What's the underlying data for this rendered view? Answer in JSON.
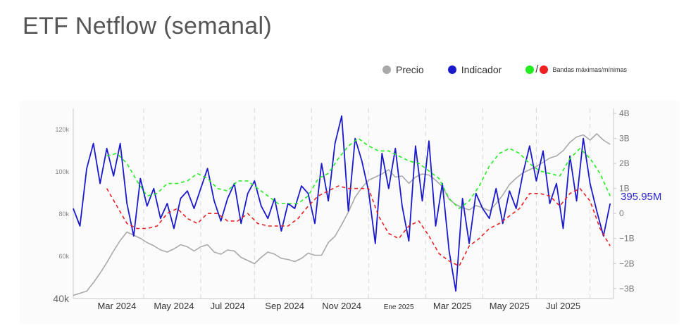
{
  "title": "ETF Netflow (semanal)",
  "legend": {
    "price": {
      "label": "Precio",
      "color": "#a9a9a9"
    },
    "indicator": {
      "label": "Indicador",
      "color": "#1a1acc"
    },
    "bands": {
      "label": "Bandas máximas/mínimas",
      "upper_color": "#22ee22",
      "lower_color": "#ee2222"
    }
  },
  "chart_data": {
    "type": "line",
    "x_range": [
      2024.03,
      2025.64
    ],
    "x_ticks": [
      {
        "label": "Mar 2024",
        "x": 2024.16
      },
      {
        "label": "May 2024",
        "x": 2024.33
      },
      {
        "label": "Jul 2024",
        "x": 2024.49
      },
      {
        "label": "Sep 2024",
        "x": 2024.66
      },
      {
        "label": "Nov 2024",
        "x": 2024.83
      },
      {
        "label": "Ene 2025",
        "x": 2025.0
      },
      {
        "label": "Mar 2025",
        "x": 2025.16
      },
      {
        "label": "May 2025",
        "x": 2025.33
      },
      {
        "label": "Jul 2025",
        "x": 2025.49
      }
    ],
    "gridlines_x": [
      2024.24,
      2024.41,
      2024.57,
      2024.74,
      2024.91,
      2025.08,
      2025.25,
      2025.41,
      2025.57
    ],
    "y_left": {
      "range": [
        40000,
        130000
      ],
      "ticks": [
        {
          "label": "120k",
          "value": 120000
        },
        {
          "label": "100k",
          "value": 100000
        },
        {
          "label": "80k",
          "value": 80000
        },
        {
          "label": "60k",
          "value": 60000
        },
        {
          "label": "40k",
          "value": 40000
        }
      ]
    },
    "y_right": {
      "range": [
        -3.4,
        4.2
      ],
      "unit": "B",
      "ticks": [
        {
          "label": "4B",
          "value": 4
        },
        {
          "label": "3B",
          "value": 3
        },
        {
          "label": "2B",
          "value": 2
        },
        {
          "label": "1B",
          "value": 1
        },
        {
          "label": "0",
          "value": 0
        },
        {
          "label": "−1B",
          "value": -1
        },
        {
          "label": "−2B",
          "value": -2
        },
        {
          "label": "−3B",
          "value": -3
        }
      ]
    },
    "last_value_label": "395.95M",
    "series": [
      {
        "name": "Precio",
        "axis": "left",
        "style": "solid",
        "color": "#a9a9a9",
        "x": [
          2024.03,
          2024.05,
          2024.07,
          2024.09,
          2024.11,
          2024.13,
          2024.15,
          2024.17,
          2024.19,
          2024.21,
          2024.23,
          2024.25,
          2024.27,
          2024.29,
          2024.31,
          2024.33,
          2024.35,
          2024.37,
          2024.39,
          2024.41,
          2024.43,
          2024.45,
          2024.47,
          2024.49,
          2024.51,
          2024.53,
          2024.55,
          2024.57,
          2024.59,
          2024.61,
          2024.63,
          2024.65,
          2024.67,
          2024.69,
          2024.71,
          2024.73,
          2024.75,
          2024.77,
          2024.79,
          2024.81,
          2024.83,
          2024.85,
          2024.87,
          2024.89,
          2024.91,
          2024.93,
          2024.95,
          2024.97,
          2024.99,
          2025.01,
          2025.03,
          2025.05,
          2025.07,
          2025.09,
          2025.11,
          2025.13,
          2025.15,
          2025.17,
          2025.19,
          2025.21,
          2025.23,
          2025.25,
          2025.27,
          2025.29,
          2025.31,
          2025.33,
          2025.35,
          2025.37,
          2025.39,
          2025.41,
          2025.43,
          2025.45,
          2025.47,
          2025.49,
          2025.51,
          2025.53,
          2025.55,
          2025.57,
          2025.59,
          2025.61,
          2025.63
        ],
        "values": [
          41500,
          42500,
          43500,
          47500,
          52000,
          57000,
          62500,
          67500,
          71500,
          70000,
          68500,
          66500,
          65000,
          63000,
          62000,
          63500,
          65500,
          64500,
          62500,
          64500,
          65500,
          62000,
          61000,
          63000,
          62500,
          59500,
          58000,
          56500,
          59500,
          62000,
          61000,
          59000,
          58500,
          57500,
          59000,
          61500,
          60500,
          60500,
          66500,
          69500,
          75000,
          81000,
          88000,
          92500,
          96000,
          97500,
          99000,
          101000,
          97500,
          98000,
          94500,
          97500,
          99000,
          98500,
          96000,
          93000,
          87000,
          84500,
          83000,
          82000,
          84000,
          83000,
          81500,
          85000,
          89000,
          94000,
          97000,
          99500,
          101000,
          102500,
          104500,
          106500,
          107500,
          110000,
          114000,
          116500,
          117500,
          115000,
          118000,
          115000,
          113000
        ]
      },
      {
        "name": "Indicador",
        "axis": "right",
        "style": "solid",
        "color": "#1a1acc",
        "x": [
          2024.03,
          2024.05,
          2024.07,
          2024.09,
          2024.11,
          2024.13,
          2024.15,
          2024.17,
          2024.19,
          2024.21,
          2024.23,
          2024.25,
          2024.27,
          2024.29,
          2024.31,
          2024.33,
          2024.35,
          2024.37,
          2024.39,
          2024.41,
          2024.43,
          2024.45,
          2024.47,
          2024.49,
          2024.51,
          2024.53,
          2024.55,
          2024.57,
          2024.59,
          2024.61,
          2024.63,
          2024.65,
          2024.67,
          2024.69,
          2024.71,
          2024.73,
          2024.75,
          2024.77,
          2024.79,
          2024.81,
          2024.83,
          2024.85,
          2024.87,
          2024.89,
          2024.91,
          2024.93,
          2024.95,
          2024.97,
          2024.99,
          2025.01,
          2025.03,
          2025.05,
          2025.07,
          2025.09,
          2025.11,
          2025.13,
          2025.15,
          2025.17,
          2025.19,
          2025.21,
          2025.23,
          2025.25,
          2025.27,
          2025.29,
          2025.31,
          2025.33,
          2025.35,
          2025.37,
          2025.39,
          2025.41,
          2025.43,
          2025.45,
          2025.47,
          2025.49,
          2025.51,
          2025.53,
          2025.55,
          2025.57,
          2025.59,
          2025.61,
          2025.63
        ],
        "values": [
          0.2,
          -0.5,
          1.8,
          2.8,
          1.2,
          2.6,
          1.5,
          2.8,
          0.4,
          -0.9,
          1.4,
          0.3,
          1.0,
          -0.2,
          0.4,
          -0.6,
          0.6,
          0.9,
          0.2,
          1.0,
          1.8,
          0.5,
          -0.3,
          0.6,
          1.2,
          -0.4,
          0.8,
          1.3,
          0.3,
          -0.2,
          0.6,
          -0.7,
          0.4,
          0.2,
          1.1,
          0.8,
          -0.4,
          2.0,
          0.5,
          2.8,
          3.9,
          0.1,
          3.0,
          2.1,
          0.9,
          -1.2,
          2.4,
          1.0,
          2.6,
          0.3,
          -1.1,
          2.7,
          0.5,
          2.9,
          -0.5,
          1.2,
          -1.5,
          -3.1,
          0.6,
          -1.2,
          0.8,
          0.2,
          -0.2,
          1.0,
          -0.4,
          0.9,
          0.2,
          1.6,
          2.7,
          1.3,
          2.5,
          0.4,
          1.2,
          -0.6,
          2.3,
          0.5,
          3.0,
          1.2,
          0.1,
          -0.9,
          0.4
        ]
      },
      {
        "name": "Banda máxima",
        "axis": "right",
        "style": "dashed",
        "color": "#22ee22",
        "x": [
          2024.13,
          2024.16,
          2024.19,
          2024.22,
          2024.25,
          2024.28,
          2024.31,
          2024.34,
          2024.37,
          2024.4,
          2024.43,
          2024.46,
          2024.49,
          2024.52,
          2024.55,
          2024.58,
          2024.61,
          2024.64,
          2024.67,
          2024.7,
          2024.73,
          2024.76,
          2024.79,
          2024.82,
          2024.85,
          2024.88,
          2024.91,
          2024.94,
          2024.97,
          2025.0,
          2025.03,
          2025.06,
          2025.09,
          2025.12,
          2025.15,
          2025.18,
          2025.21,
          2025.24,
          2025.27,
          2025.3,
          2025.33,
          2025.36,
          2025.39,
          2025.42,
          2025.45,
          2025.48,
          2025.51,
          2025.54,
          2025.57,
          2025.6,
          2025.63
        ],
        "values": [
          2.3,
          2.4,
          2.0,
          1.3,
          0.7,
          0.8,
          1.2,
          1.2,
          1.3,
          1.6,
          1.4,
          1.0,
          0.9,
          1.3,
          1.3,
          1.0,
          0.7,
          0.4,
          0.4,
          0.4,
          0.7,
          1.4,
          1.6,
          2.2,
          2.7,
          3.0,
          2.7,
          2.5,
          2.5,
          2.3,
          2.1,
          2.0,
          1.7,
          1.4,
          0.6,
          0.2,
          0.5,
          1.1,
          1.9,
          2.4,
          2.6,
          2.4,
          2.0,
          1.7,
          1.6,
          1.5,
          2.2,
          2.6,
          2.2,
          1.6,
          0.7
        ]
      },
      {
        "name": "Banda mínima",
        "axis": "right",
        "style": "dashed",
        "color": "#e62222",
        "x": [
          2024.13,
          2024.16,
          2024.19,
          2024.22,
          2024.25,
          2024.28,
          2024.31,
          2024.34,
          2024.37,
          2024.4,
          2024.43,
          2024.46,
          2024.49,
          2024.52,
          2024.55,
          2024.58,
          2024.61,
          2024.64,
          2024.67,
          2024.7,
          2024.73,
          2024.76,
          2024.79,
          2024.82,
          2024.85,
          2024.88,
          2024.91,
          2024.94,
          2024.97,
          2025.0,
          2025.03,
          2025.06,
          2025.09,
          2025.12,
          2025.15,
          2025.18,
          2025.21,
          2025.24,
          2025.27,
          2025.3,
          2025.33,
          2025.36,
          2025.39,
          2025.42,
          2025.45,
          2025.48,
          2025.51,
          2025.54,
          2025.57,
          2025.6,
          2025.63
        ],
        "values": [
          1.0,
          0.3,
          -0.4,
          -0.6,
          -0.6,
          -0.5,
          0.0,
          0.2,
          -0.2,
          -0.4,
          0.0,
          0.0,
          -0.3,
          -0.3,
          0.0,
          -0.4,
          -0.5,
          -0.5,
          -0.5,
          -0.2,
          0.3,
          0.7,
          0.9,
          1.1,
          1.0,
          1.0,
          1.0,
          -0.1,
          -0.8,
          -1.0,
          -0.5,
          -0.3,
          -0.9,
          -1.6,
          -1.9,
          -2.1,
          -1.3,
          -1.0,
          -0.6,
          -0.4,
          -0.1,
          0.2,
          0.8,
          0.8,
          0.7,
          0.3,
          0.8,
          1.0,
          0.5,
          -0.6,
          -1.3
        ]
      }
    ]
  }
}
